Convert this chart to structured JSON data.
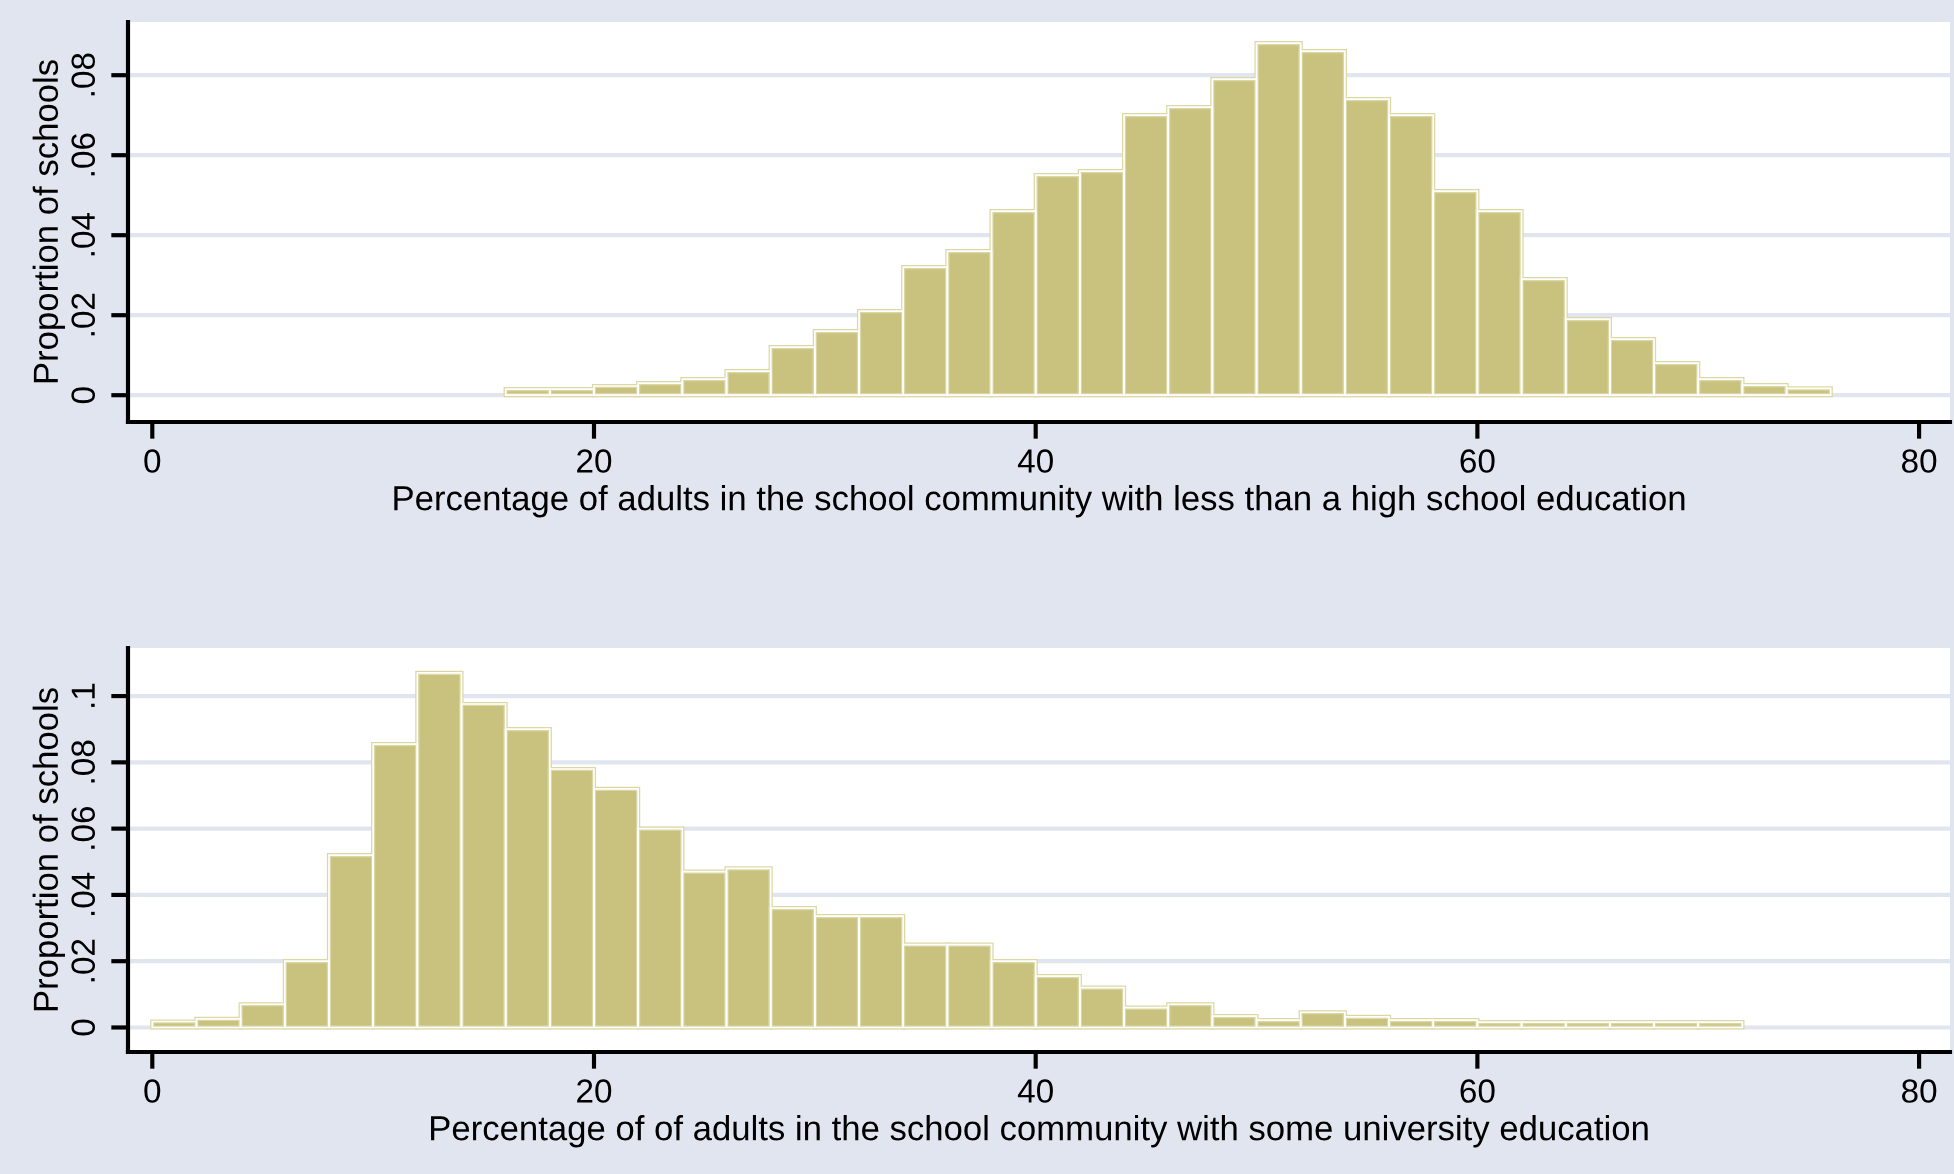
{
  "chart_data": [
    {
      "type": "histogram",
      "xlabel": "Percentage of adults in the school community with less than a high school education",
      "ylabel": "Proportion of schools",
      "color": "#c9c27f",
      "bins": [
        16,
        18,
        20,
        22,
        24,
        26,
        28,
        30,
        32,
        34,
        36,
        38,
        40,
        42,
        44,
        46,
        48,
        50,
        52,
        54,
        56,
        58,
        60,
        62,
        64,
        66,
        68,
        70,
        72,
        74,
        76
      ],
      "values": [
        0.0015,
        0.0015,
        0.0023,
        0.003,
        0.004,
        0.006,
        0.012,
        0.016,
        0.021,
        0.032,
        0.036,
        0.046,
        0.055,
        0.056,
        0.07,
        0.072,
        0.079,
        0.088,
        0.086,
        0.074,
        0.07,
        0.051,
        0.046,
        0.029,
        0.019,
        0.014,
        0.008,
        0.004,
        0.0025,
        0.0017
      ],
      "xlim": [
        -1.1,
        81.4
      ],
      "ylim": [
        -0.0067,
        0.0933
      ],
      "xticks": [
        0,
        20,
        40,
        60,
        80
      ],
      "yticks": [
        {
          "value": 0,
          "label": "0"
        },
        {
          "value": 0.02,
          "label": ".02"
        },
        {
          "value": 0.04,
          "label": ".04"
        },
        {
          "value": 0.06,
          "label": ".06"
        },
        {
          "value": 0.08,
          "label": ".08"
        }
      ],
      "grid": "y"
    },
    {
      "type": "histogram",
      "xlabel": "Percentage of of adults in the school community with some university education",
      "ylabel": "Proportion of schools",
      "color": "#c9c27f",
      "bins": [
        0,
        2,
        4,
        6,
        8,
        10,
        12,
        14,
        16,
        18,
        20,
        22,
        24,
        26,
        28,
        30,
        32,
        34,
        36,
        38,
        40,
        42,
        44,
        46,
        48,
        50,
        52,
        54,
        56,
        58,
        60,
        62,
        64,
        66,
        68,
        70,
        72
      ],
      "values": [
        0.0018,
        0.0026,
        0.007,
        0.02,
        0.052,
        0.0855,
        0.107,
        0.0976,
        0.09,
        0.078,
        0.072,
        0.06,
        0.047,
        0.048,
        0.036,
        0.0336,
        0.0336,
        0.025,
        0.025,
        0.02,
        0.0155,
        0.012,
        0.006,
        0.007,
        0.0034,
        0.0022,
        0.0046,
        0.0032,
        0.0022,
        0.0022,
        0.0016,
        0.0016,
        0.0016,
        0.0016,
        0.0016,
        0.0016
      ],
      "xlim": [
        -1.1,
        81.4
      ],
      "ylim": [
        -0.0074,
        0.1145
      ],
      "xticks": [
        0,
        20,
        40,
        60,
        80
      ],
      "yticks": [
        {
          "value": 0,
          "label": "0"
        },
        {
          "value": 0.02,
          "label": ".02"
        },
        {
          "value": 0.04,
          "label": ".04"
        },
        {
          "value": 0.06,
          "label": ".06"
        },
        {
          "value": 0.08,
          "label": ".08"
        },
        {
          "value": 0.1,
          "label": ".1"
        }
      ],
      "grid": "y"
    }
  ]
}
